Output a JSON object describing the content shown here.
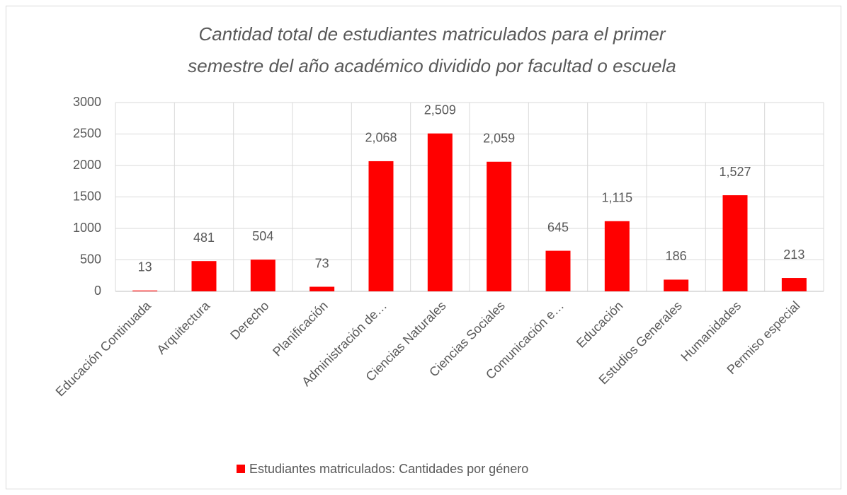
{
  "chart_data": {
    "type": "bar",
    "title": [
      "Cantidad total de estudiantes matriculados para el primer",
      "semestre del año académico dividido por facultad o escuela"
    ],
    "categories": [
      "Educación Continuada",
      "Arquitectura",
      "Derecho",
      "Planificación",
      "Administración de…",
      "Ciencias Naturales",
      "Ciencias Sociales",
      "Comunicación e…",
      "Educación",
      "Estudios Generales",
      "Humanidades",
      "Permiso especial"
    ],
    "series": [
      {
        "name": "Estudiantes matriculados: Cantidades por género",
        "color": "#ff0000",
        "values": [
          13,
          481,
          504,
          73,
          2068,
          2509,
          2059,
          645,
          1115,
          186,
          1527,
          213
        ],
        "value_labels": [
          "13",
          "481",
          "504",
          "73",
          "2,068",
          "2,509",
          "2,059",
          "645",
          "1,115",
          "186",
          "1,527",
          "213"
        ]
      }
    ],
    "ylim": [
      0,
      3000
    ],
    "yticks": [
      0,
      500,
      1000,
      1500,
      2000,
      2500,
      3000
    ],
    "grid": true,
    "legend": "bottom"
  }
}
